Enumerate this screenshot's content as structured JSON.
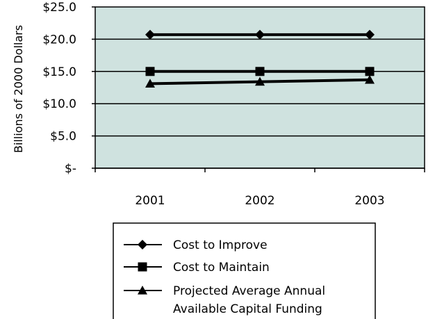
{
  "chart_data": {
    "type": "line",
    "title": "",
    "xlabel": "",
    "ylabel": "Billions of 2000 Dollars",
    "categories": [
      "2001",
      "2002",
      "2003"
    ],
    "ylim": [
      0,
      25
    ],
    "yticks": [
      {
        "value": 0,
        "label": "$-"
      },
      {
        "value": 5,
        "label": "$5.0"
      },
      {
        "value": 10,
        "label": "$10.0"
      },
      {
        "value": 15,
        "label": "$15.0"
      },
      {
        "value": 20,
        "label": "$20.0"
      },
      {
        "value": 25,
        "label": "$25.0"
      }
    ],
    "grid": true,
    "plot_background": "#cfe2df",
    "legend_position": "bottom",
    "series": [
      {
        "name": "Cost to Improve",
        "marker": "diamond",
        "color": "#000000",
        "values": [
          20.7,
          20.7,
          20.7
        ]
      },
      {
        "name": "Cost to Maintain",
        "marker": "square",
        "color": "#000000",
        "values": [
          15.0,
          15.0,
          15.0
        ]
      },
      {
        "name": "Projected Average Annual Available Capital Funding",
        "label_lines": [
          "Projected Average Annual",
          "Available Capital Funding"
        ],
        "marker": "triangle",
        "color": "#000000",
        "values": [
          13.1,
          13.4,
          13.7
        ]
      }
    ]
  }
}
